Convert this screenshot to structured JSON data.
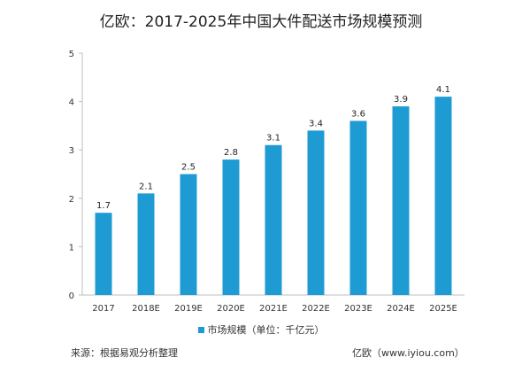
{
  "chart_data": {
    "type": "bar",
    "title": "亿欧：2017-2025年中国大件配送市场规模预测",
    "categories": [
      "2017",
      "2018E",
      "2019E",
      "2020E",
      "2021E",
      "2022E",
      "2023E",
      "2024E",
      "2025E"
    ],
    "series": [
      {
        "name": "市场规模（单位：千亿元）",
        "values": [
          1.7,
          2.1,
          2.5,
          2.8,
          3.1,
          3.4,
          3.6,
          3.9,
          4.1
        ],
        "color": "#1f9bd4"
      }
    ],
    "ylim": [
      0,
      5
    ],
    "yticks": [
      0,
      1,
      2,
      3,
      4,
      5
    ],
    "xlabel": "",
    "ylabel": "",
    "grid": false,
    "legend_position": "bottom"
  },
  "footer": {
    "source": "来源：根据易观分析整理",
    "brand": "亿欧（www.iyiou.com）"
  }
}
